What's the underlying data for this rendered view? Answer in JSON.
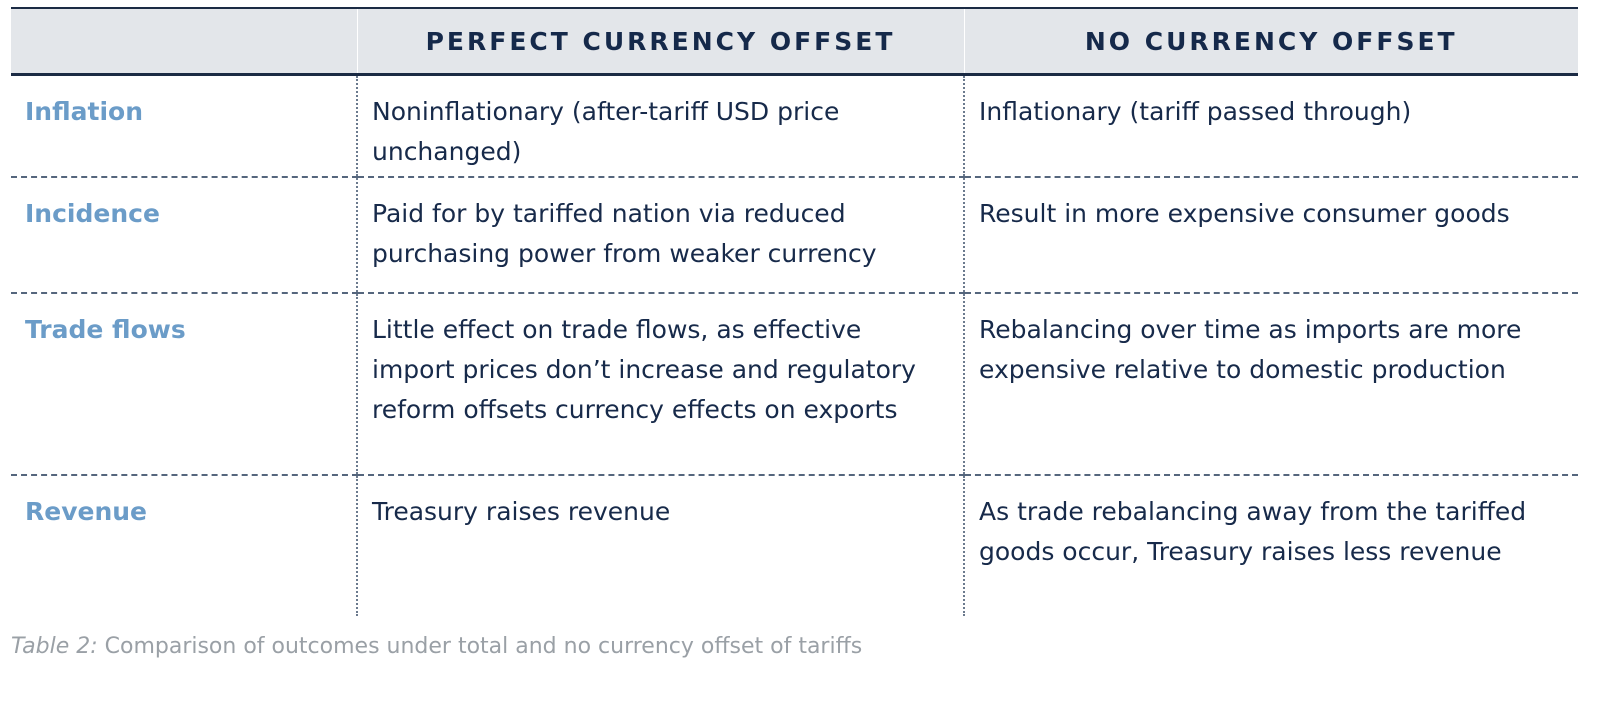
{
  "table": {
    "headers": [
      "",
      "PERFECT CURRENCY OFFSET",
      "NO CURRENCY OFFSET"
    ],
    "rows": [
      {
        "label": "Inflation",
        "perfect": "Noninflationary (after-tariff USD price unchanged)",
        "none": "Inflationary (tariff passed through)"
      },
      {
        "label": "Incidence",
        "perfect": "Paid for by tariffed nation via reduced purchasing power from weaker currency",
        "none": "Result in more expensive consumer goods"
      },
      {
        "label": "Trade flows",
        "perfect": "Little effect on trade flows, as effective import prices don’t increase and regulatory reform offsets currency effects on exports",
        "none": "Rebalancing over time as imports are more expensive relative to domestic production"
      },
      {
        "label": "Revenue",
        "perfect": "Treasury raises revenue",
        "none": "As trade rebalancing away from the tariffed goods occur, Treasury raises less revenue"
      }
    ]
  },
  "caption": {
    "label": "Table 2:",
    "text": " Comparison of outcomes under total and no currency offset of tariffs"
  },
  "colors": {
    "header_bg": "#e3e6ea",
    "header_text": "#15294a",
    "row_label": "#6b9cc8",
    "body_text": "#172a4a",
    "caption": "#9aa0a6"
  }
}
